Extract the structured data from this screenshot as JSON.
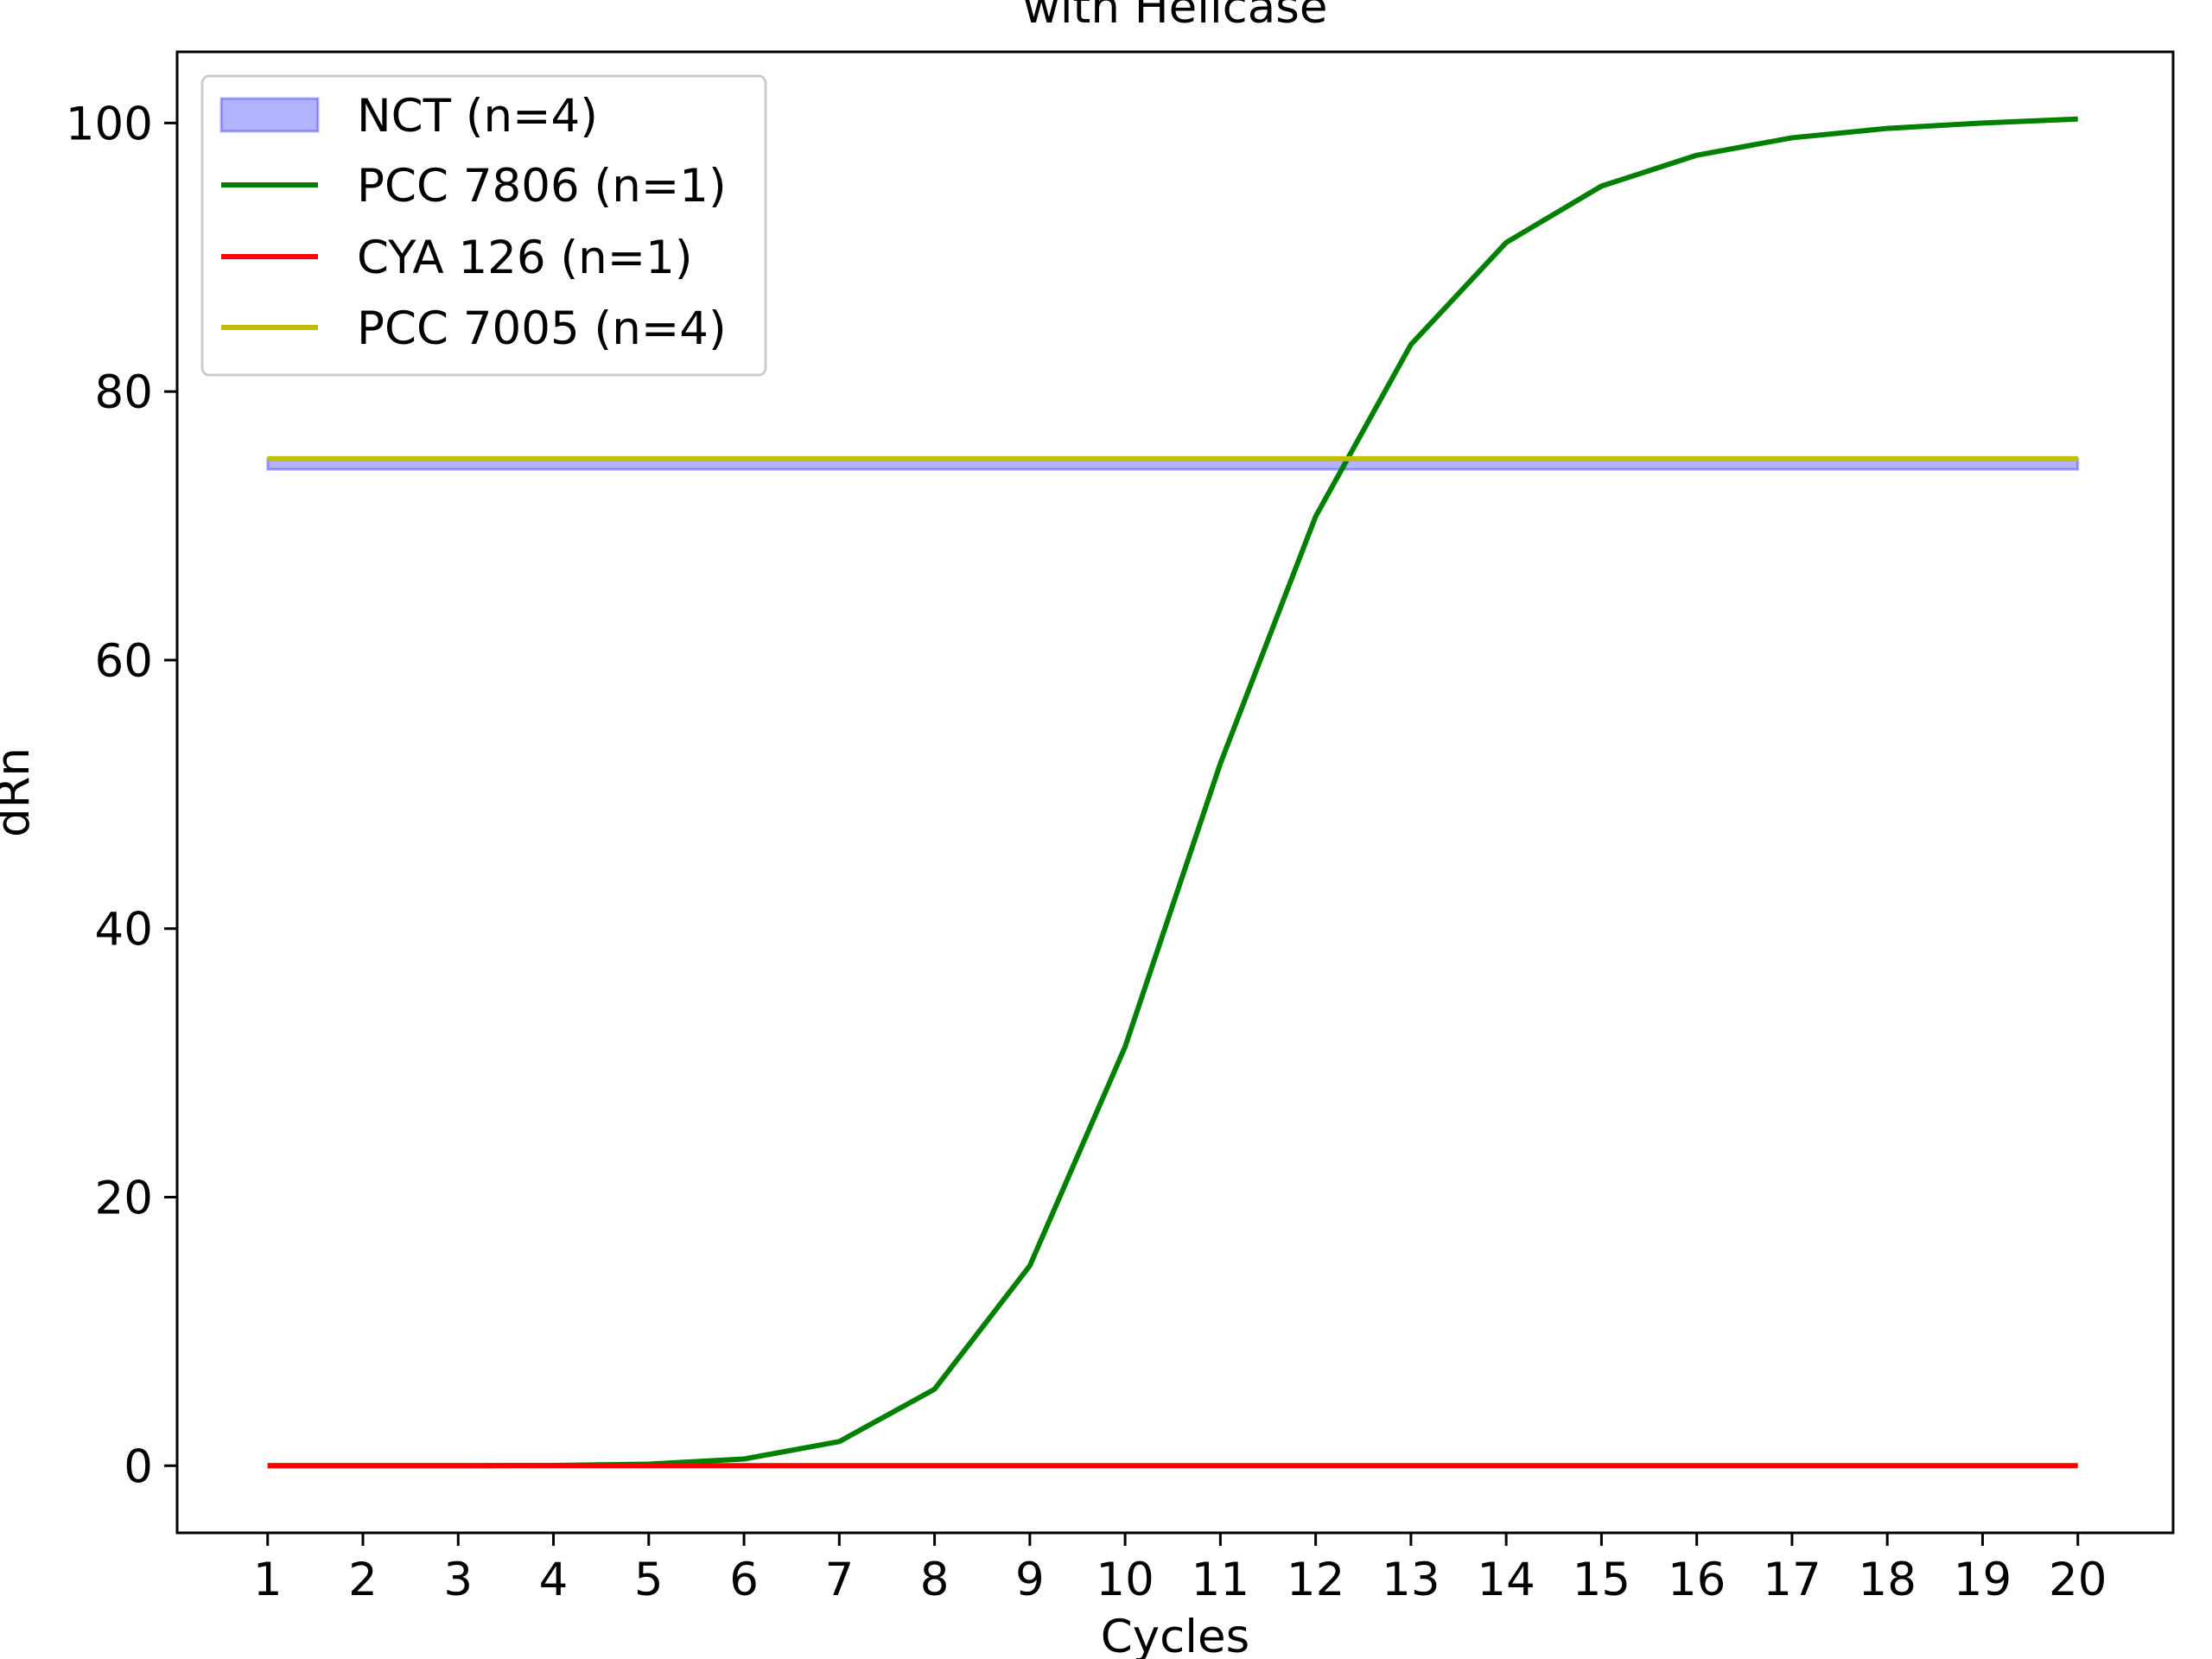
{
  "chart_data": {
    "type": "line",
    "title": "with Helicase",
    "xlabel": "Cycles",
    "ylabel": "dRn",
    "x": [
      1,
      2,
      3,
      4,
      5,
      6,
      7,
      8,
      9,
      10,
      11,
      12,
      13,
      14,
      15,
      16,
      17,
      18,
      19,
      20
    ],
    "x_ticks": [
      "1",
      "2",
      "3",
      "4",
      "5",
      "6",
      "7",
      "8",
      "9",
      "10",
      "11",
      "12",
      "13",
      "14",
      "15",
      "16",
      "17",
      "18",
      "19",
      "20"
    ],
    "y_ticks": [
      "0",
      "20",
      "40",
      "60",
      "80",
      "100"
    ],
    "y_tick_values": [
      0,
      20,
      40,
      60,
      80,
      100
    ],
    "xlim": [
      0.05,
      21.0
    ],
    "ylim": [
      -5,
      105.3
    ],
    "grid": false,
    "legend_position": "top-left",
    "band": {
      "name": "NCT (n=4)",
      "color": "#0000ff",
      "lower": 74.2,
      "upper": 75.0
    },
    "series": [
      {
        "name": "PCC 7806 (n=1)",
        "color": "#008000",
        "values": [
          0,
          0,
          0,
          0.02,
          0.12,
          0.5,
          1.8,
          5.7,
          14.9,
          31.2,
          52.3,
          70.7,
          83.5,
          91.1,
          95.3,
          97.6,
          98.9,
          99.6,
          100.0,
          100.3
        ]
      },
      {
        "name": "CYA 126 (n=1)",
        "color": "#ff0000",
        "values": [
          0,
          0,
          0,
          0,
          0,
          0,
          0,
          0,
          0,
          0,
          0,
          0,
          0,
          0,
          0,
          0,
          0,
          0,
          0,
          0
        ]
      },
      {
        "name": "PCC 7005 (n=4)",
        "color": "#bfbf00",
        "values": [
          75.0,
          75.0,
          75.0,
          75.0,
          75.0,
          75.0,
          75.0,
          75.0,
          75.0,
          75.0,
          75.0,
          75.0,
          75.0,
          75.0,
          75.0,
          75.0,
          75.0,
          75.0,
          75.0,
          75.0
        ]
      }
    ]
  }
}
